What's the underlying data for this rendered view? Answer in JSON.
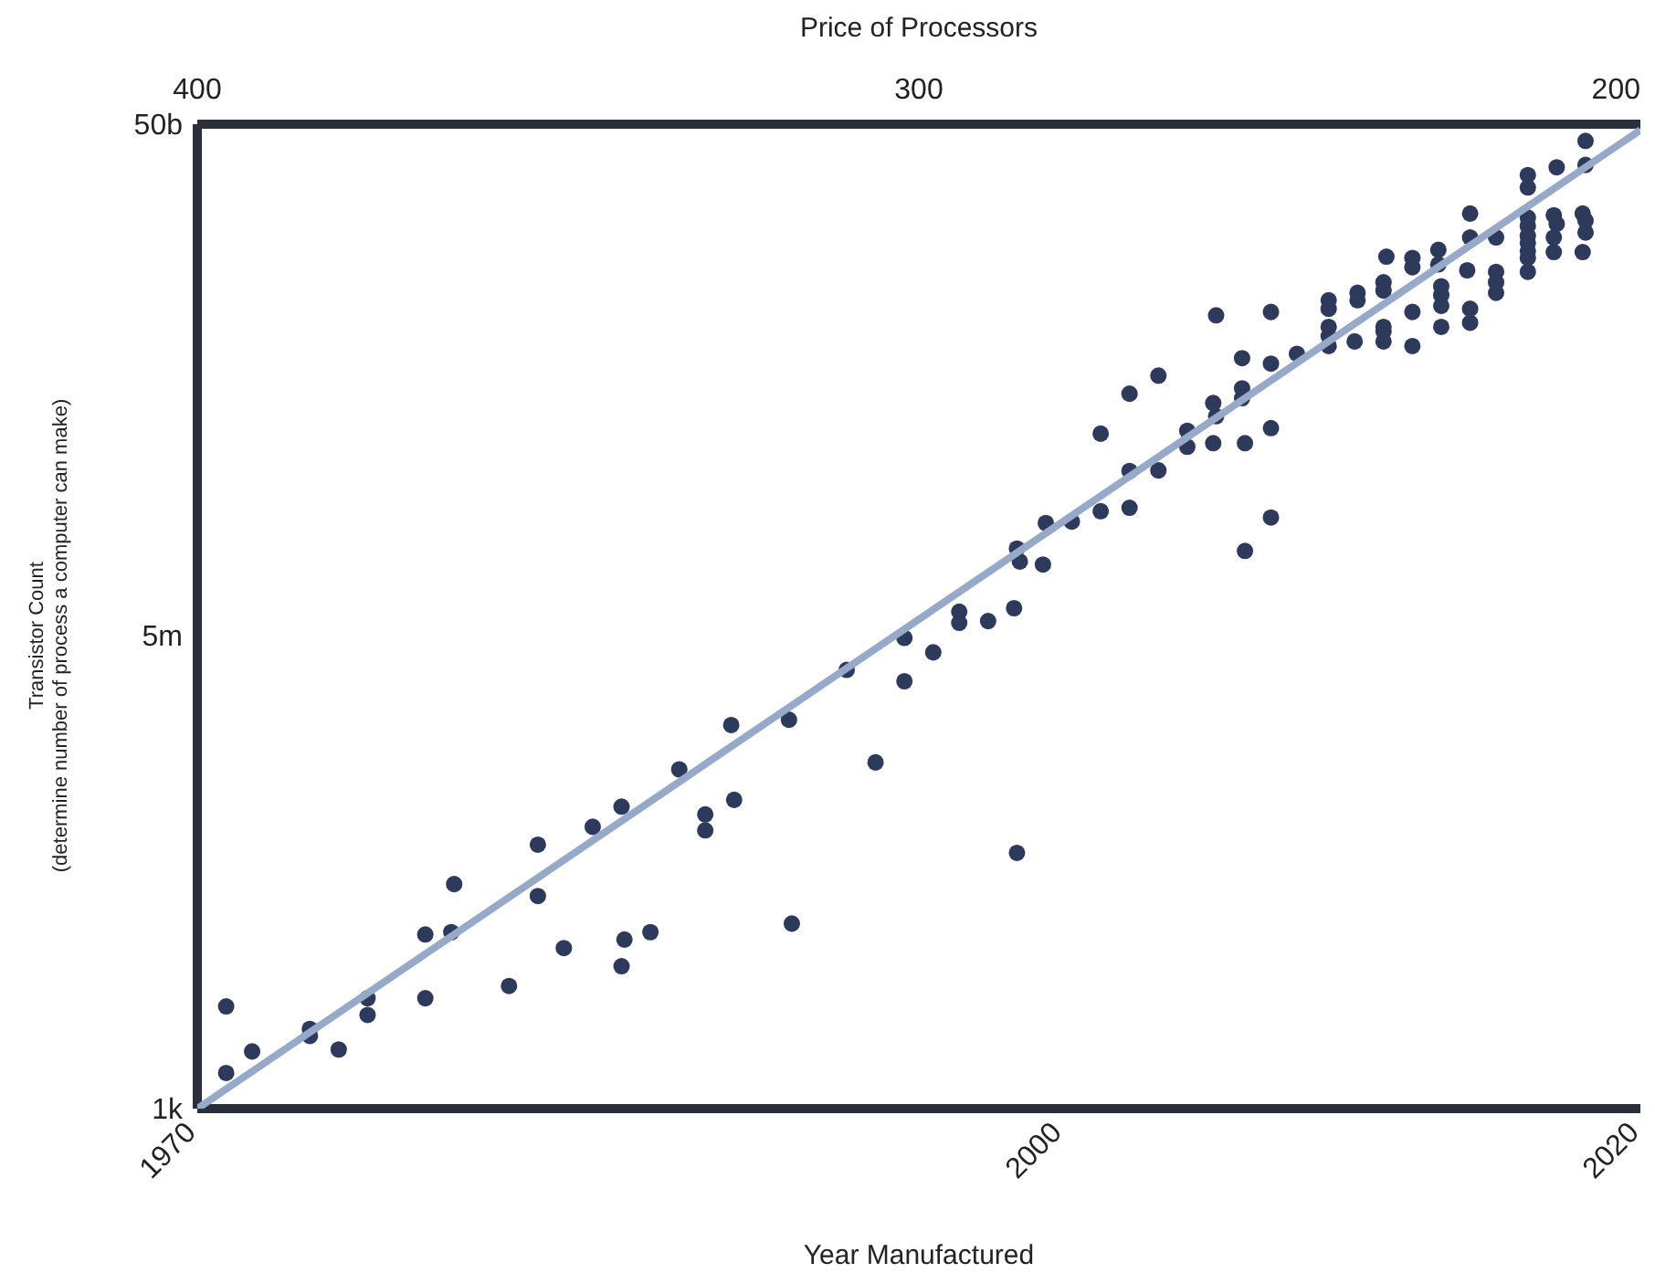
{
  "chart_data": {
    "type": "scatter",
    "xlabel": "Year Manufactured",
    "ylabel": "Transistor Count\n(determine number of process a computer can make)",
    "x2label": "Price of Processors",
    "xlim": [
      1970,
      2020
    ],
    "xticks": [
      1970,
      2000,
      2020
    ],
    "x2lim": [
      400,
      200
    ],
    "x2ticks": [
      400,
      300,
      200
    ],
    "log": "y",
    "ylim": [
      1000,
      50000000000
    ],
    "yticks": [
      {
        "value": 1000,
        "label": "1k"
      },
      {
        "value": 5000000,
        "label": "5m"
      },
      {
        "value": 50000000000,
        "label": "50b"
      }
    ],
    "grid": false,
    "legend": false,
    "series": [
      {
        "type": "scatter",
        "marker": "circle",
        "color": "#2e3a5c",
        "x": [
          1971.0,
          1971.0,
          1971.9,
          1973.9,
          1973.9,
          1974.9,
          1975.9,
          1975.9,
          1977.9,
          1977.9,
          1978.8,
          1978.9,
          1980.8,
          1981.8,
          1981.8,
          1982.7,
          1983.7,
          1984.7,
          1984.7,
          1984.8,
          1985.7,
          1986.7,
          1987.6,
          1987.6,
          1988.5,
          1988.6,
          1990.5,
          1990.6,
          1992.5,
          1993.5,
          1994.5,
          1994.5,
          1995.5,
          1996.4,
          1996.4,
          1997.4,
          1998.3,
          1998.4,
          1998.5,
          1998.4,
          1999.3,
          1999.4,
          2000.3,
          2001.3,
          2001.3,
          2002.3,
          2002.3,
          2002.3,
          2003.3,
          2003.3,
          2004.3,
          2004.3,
          2005.2,
          2005.3,
          2005.2,
          2005.3,
          2006.2,
          2006.2,
          2006.2,
          2006.3,
          2006.3,
          2007.2,
          2007.2,
          2007.2,
          2007.2,
          2008.1,
          2009.2,
          2009.2,
          2009.2,
          2009.2,
          2009.2,
          2010.1,
          2010.2,
          2010.2,
          2011.1,
          2011.1,
          2011.1,
          2011.1,
          2011.1,
          2011.2,
          2012.1,
          2012.1,
          2012.1,
          2012.1,
          2013.0,
          2013.0,
          2013.1,
          2013.1,
          2013.1,
          2013.1,
          2014.1,
          2014.1,
          2014.0,
          2014.1,
          2014.1,
          2015.0,
          2015.0,
          2015.0,
          2015.0,
          2016.1,
          2016.1,
          2016.1,
          2016.1,
          2016.1,
          2016.1,
          2016.1,
          2016.1,
          2016.1,
          2017.1,
          2017.0,
          2017.1,
          2017.0,
          2017.0,
          2018.1,
          2018.1,
          2018.0,
          2018.1,
          2018.1,
          2018.0
        ],
        "values": [
          6300,
          1900,
          2800,
          4200,
          3700,
          2900,
          7300,
          5400,
          23000,
          7300,
          24000,
          57000,
          9100,
          116000,
          46000,
          18000,
          160000,
          230000,
          13000,
          21000,
          24000,
          450000,
          200000,
          150000,
          1000000,
          260000,
          1100000,
          28000,
          2700000,
          510000,
          4800000,
          2200000,
          3700000,
          7700000,
          6300000,
          6500000,
          8200000,
          24000000,
          19000000,
          100000,
          18000000,
          38000000,
          39000000,
          190000000,
          47000000,
          390000000,
          97000000,
          50000000,
          540000000,
          98000000,
          200000000,
          150000000,
          330000000,
          260000000,
          160000000,
          1600000000,
          740000000,
          430000000,
          360000000,
          160000000,
          23000000,
          1700000000,
          670000000,
          210000000,
          42000000,
          800000000,
          2100000000,
          1800000000,
          1300000000,
          1100000000,
          920000000,
          1000000000,
          2400000000,
          2100000000,
          2900000000,
          2500000000,
          1300000000,
          1200000000,
          1000000000,
          4600000000,
          4500000000,
          3800000000,
          1700000000,
          920000000,
          5200000000,
          4000000000,
          2700000000,
          2300000000,
          1900000000,
          1300000000,
          10000000000,
          6500000000,
          3600000000,
          1800000000,
          1400000000,
          6500000000,
          3500000000,
          2900000000,
          2400000000,
          20000000000,
          16000000000,
          9300000000,
          8000000000,
          6700000000,
          5900000000,
          5100000000,
          4500000000,
          3500000000,
          23000000000,
          9700000000,
          8300000000,
          6500000000,
          5000000000,
          37000000000,
          24000000000,
          10000000000,
          8800000000,
          7100000000,
          5000000000
        ]
      },
      {
        "type": "line",
        "marker": "none",
        "color": "#97a9c9",
        "x": [
          1970,
          2020
        ],
        "values": [
          1000,
          45000000000
        ]
      }
    ]
  }
}
